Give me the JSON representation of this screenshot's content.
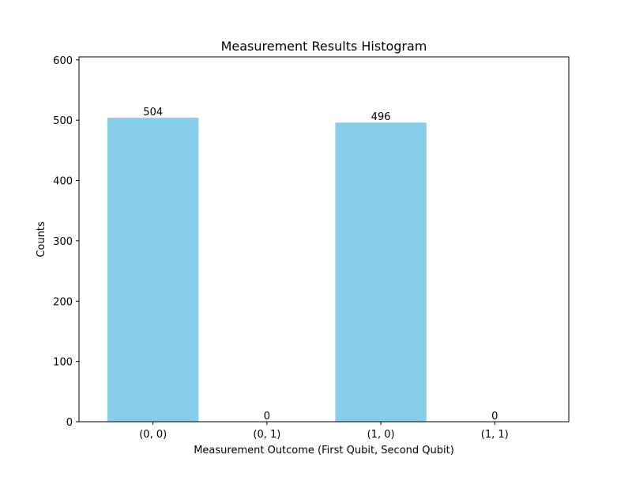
{
  "chart_data": {
    "type": "bar",
    "title": "Measurement Results Histogram",
    "xlabel": "Measurement Outcome (First Qubit, Second Qubit)",
    "ylabel": "Counts",
    "categories": [
      "(0, 0)",
      "(0, 1)",
      "(1, 0)",
      "(1, 1)"
    ],
    "values": [
      504,
      0,
      496,
      0
    ],
    "data_labels": [
      "504",
      "0",
      "496",
      "0"
    ],
    "ylim": [
      0,
      605
    ],
    "yticks": [
      0,
      100,
      200,
      300,
      400,
      500,
      600
    ],
    "ytick_labels": [
      "0",
      "100",
      "200",
      "300",
      "400",
      "500",
      "600"
    ],
    "grid": false,
    "bar_color": "#87ceeb"
  }
}
